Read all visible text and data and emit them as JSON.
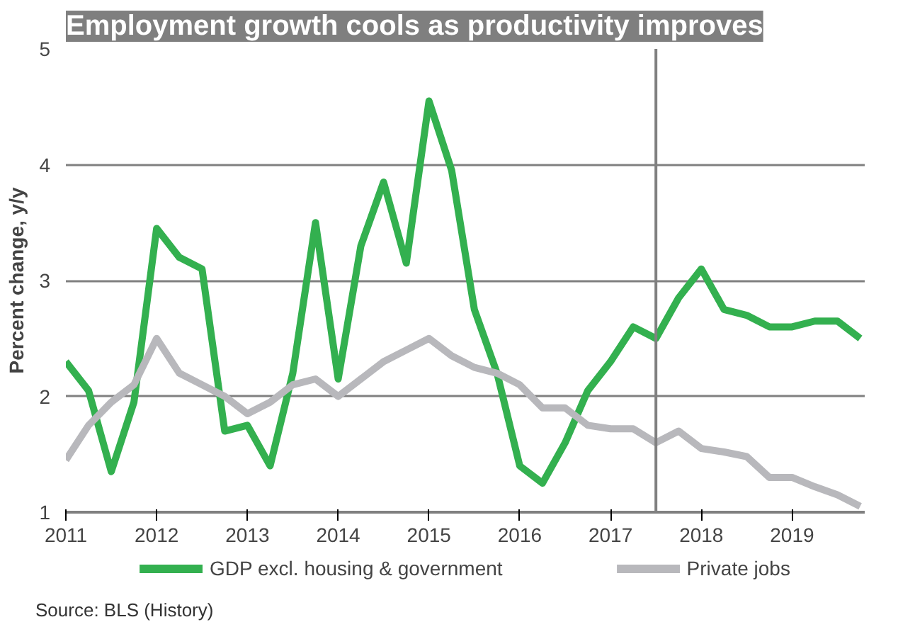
{
  "chart_data": {
    "type": "line",
    "title": "Employment growth cools as productivity improves",
    "ylabel": "Percent change, y/y",
    "x": [
      2011,
      2011.25,
      2011.5,
      2011.75,
      2012,
      2012.25,
      2012.5,
      2012.75,
      2013,
      2013.25,
      2013.5,
      2013.75,
      2014,
      2014.25,
      2014.5,
      2014.75,
      2015,
      2015.25,
      2015.5,
      2015.75,
      2016,
      2016.25,
      2016.5,
      2016.75,
      2017,
      2017.25,
      2017.5,
      2017.75,
      2018,
      2018.25,
      2018.5,
      2018.75,
      2019,
      2019.25,
      2019.5,
      2019.75
    ],
    "series": [
      {
        "name": "GDP excl. housing & government",
        "color": "#33b04f",
        "values": [
          2.3,
          2.05,
          1.35,
          1.95,
          3.45,
          3.2,
          3.1,
          1.7,
          1.75,
          1.4,
          2.2,
          3.5,
          2.15,
          3.3,
          3.85,
          3.15,
          4.55,
          3.95,
          2.75,
          2.2,
          1.4,
          1.25,
          1.6,
          2.05,
          2.3,
          2.6,
          2.5,
          2.85,
          3.1,
          2.75,
          2.7,
          2.6,
          2.6,
          2.65,
          2.65,
          2.5
        ]
      },
      {
        "name": "Private jobs",
        "color": "#b8b8bc",
        "values": [
          1.45,
          1.75,
          1.95,
          2.1,
          2.5,
          2.2,
          2.1,
          2.0,
          1.85,
          1.95,
          2.1,
          2.15,
          2.0,
          2.15,
          2.3,
          2.4,
          2.5,
          2.35,
          2.25,
          2.2,
          2.1,
          1.9,
          1.9,
          1.75,
          1.72,
          1.72,
          1.6,
          1.7,
          1.55,
          1.52,
          1.48,
          1.3,
          1.3,
          1.22,
          1.15,
          1.05
        ]
      }
    ],
    "xlim": [
      2011,
      2019.8
    ],
    "xticks": [
      2011,
      2012,
      2013,
      2014,
      2015,
      2016,
      2017,
      2018,
      2019
    ],
    "ylim": [
      1,
      5
    ],
    "yticks": [
      1,
      2,
      3,
      4,
      5
    ],
    "grid": "y",
    "legend": "bottom",
    "marker": "none",
    "line_style": "solid",
    "ref_lines": [
      {
        "axis": "x",
        "value": 2017.5,
        "color": "#808080"
      }
    ],
    "annotations": [
      "Source: BLS (History)"
    ]
  }
}
